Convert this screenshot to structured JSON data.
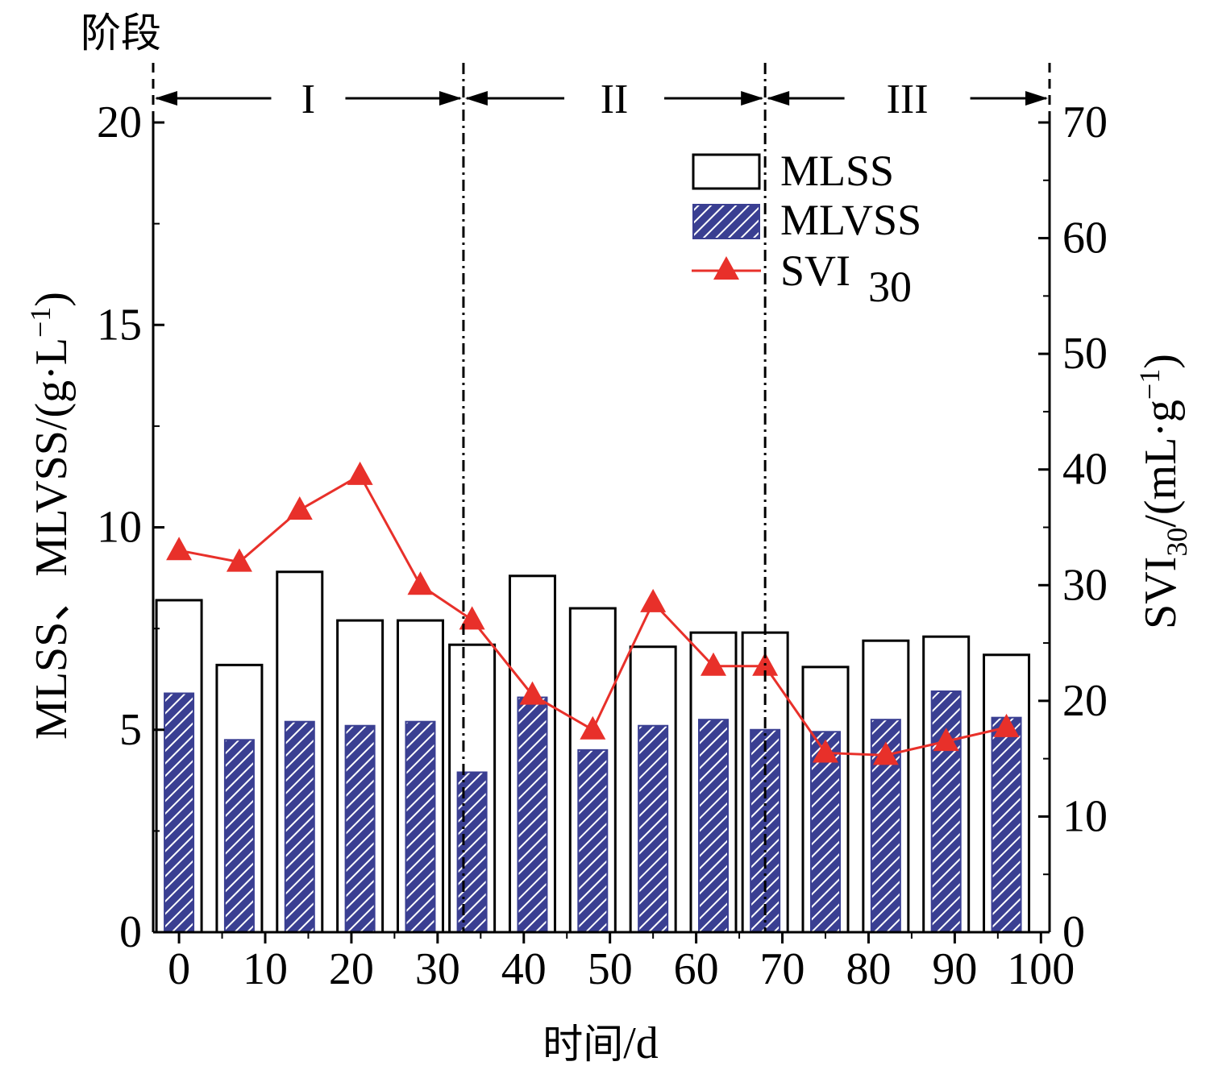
{
  "chart_data": {
    "type": "bar",
    "stage_title": "阶段",
    "stages": [
      {
        "label": "I",
        "start": 0,
        "end": 33
      },
      {
        "label": "II",
        "start": 33,
        "end": 68
      },
      {
        "label": "III",
        "start": 68,
        "end": 100
      }
    ],
    "xlabel_cjk": "时间",
    "xlabel_unit": "/d",
    "ylabel_left": "MLSS、MLVSS/(g·L",
    "ylabel_left_exp": "−1",
    "ylabel_left_close": ")",
    "ylabel_right_main": "SVI",
    "ylabel_right_sub": "30",
    "ylabel_right_rest": "/(mL·g",
    "ylabel_right_exp": "−1",
    "ylabel_right_close": ")",
    "xlim": [
      -3,
      101
    ],
    "ylim_left": [
      0,
      20
    ],
    "ylim_right": [
      0,
      70
    ],
    "x_ticks": [
      0,
      10,
      20,
      30,
      40,
      50,
      60,
      70,
      80,
      90,
      100
    ],
    "y_left_ticks": [
      0,
      5,
      10,
      15,
      20
    ],
    "y_right_ticks": [
      0,
      10,
      20,
      30,
      40,
      50,
      60,
      70
    ],
    "x": [
      0,
      7,
      14,
      21,
      28,
      34,
      41,
      48,
      55,
      62,
      68,
      75,
      82,
      89,
      96
    ],
    "series": [
      {
        "name": "MLSS",
        "axis": "left",
        "style": "bar-open",
        "values": [
          8.2,
          6.6,
          8.9,
          7.7,
          7.7,
          7.1,
          8.8,
          8.0,
          7.05,
          7.4,
          7.4,
          6.55,
          7.2,
          7.3,
          6.85
        ]
      },
      {
        "name": "MLVSS",
        "axis": "left",
        "style": "bar-hatched",
        "values": [
          5.9,
          4.75,
          5.2,
          5.1,
          5.2,
          3.95,
          5.8,
          4.5,
          5.1,
          5.25,
          5.0,
          4.95,
          5.25,
          5.95,
          5.3
        ]
      },
      {
        "name": "SVI",
        "name_sub": "30",
        "axis": "right",
        "style": "line-triangle",
        "values": [
          33,
          32,
          36.5,
          39.5,
          30,
          27,
          20.5,
          17.5,
          28.5,
          23,
          23,
          15.5,
          15.3,
          16.5,
          17.7
        ]
      }
    ],
    "colors": {
      "mlvss_fill": "#3a3f92",
      "svi_line": "#e8302a",
      "axis": "#000000"
    }
  }
}
